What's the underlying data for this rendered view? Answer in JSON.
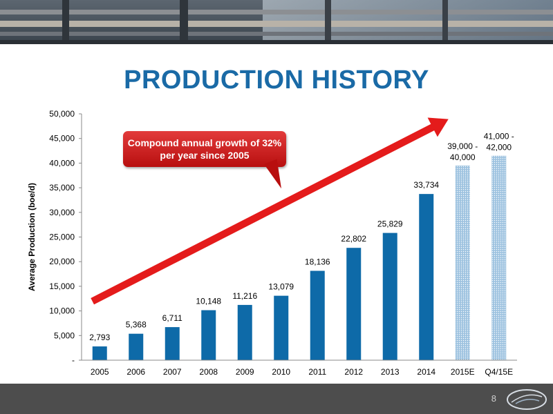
{
  "title": "PRODUCTION HISTORY",
  "callout": {
    "text": "Compound annual growth of 32% per year since 2005"
  },
  "footer": {
    "page_number": "8"
  },
  "colors": {
    "title": "#1a6aa6",
    "bar": "#0e6aa8",
    "estimate_bar": "#9ec3e0",
    "arrow": "#e41b1b",
    "footer": "#4d4d4d"
  },
  "chart_data": {
    "type": "bar",
    "ylabel": "Average Production (boe/d)",
    "xlabel": "",
    "ylim": [
      0,
      50000
    ],
    "yticks": [
      0,
      5000,
      10000,
      15000,
      20000,
      25000,
      30000,
      35000,
      40000,
      45000,
      50000
    ],
    "ytick_labels": [
      "-",
      "5,000",
      "10,000",
      "15,000",
      "20,000",
      "25,000",
      "30,000",
      "35,000",
      "40,000",
      "45,000",
      "50,000"
    ],
    "categories": [
      "2005",
      "2006",
      "2007",
      "2008",
      "2009",
      "2010",
      "2011",
      "2012",
      "2013",
      "2014",
      "2015E",
      "Q4/15E"
    ],
    "values": [
      2793,
      5368,
      6711,
      10148,
      11216,
      13079,
      18136,
      22802,
      25829,
      33734,
      39500,
      41500
    ],
    "data_labels": [
      "2,793",
      "5,368",
      "6,711",
      "10,148",
      "11,216",
      "13,079",
      "18,136",
      "22,802",
      "25,829",
      "33,734",
      "39,000 - 40,000",
      "41,000 - 42,000"
    ],
    "estimate": [
      false,
      false,
      false,
      false,
      false,
      false,
      false,
      false,
      false,
      false,
      true,
      true
    ],
    "grid": false,
    "legend": "none"
  }
}
